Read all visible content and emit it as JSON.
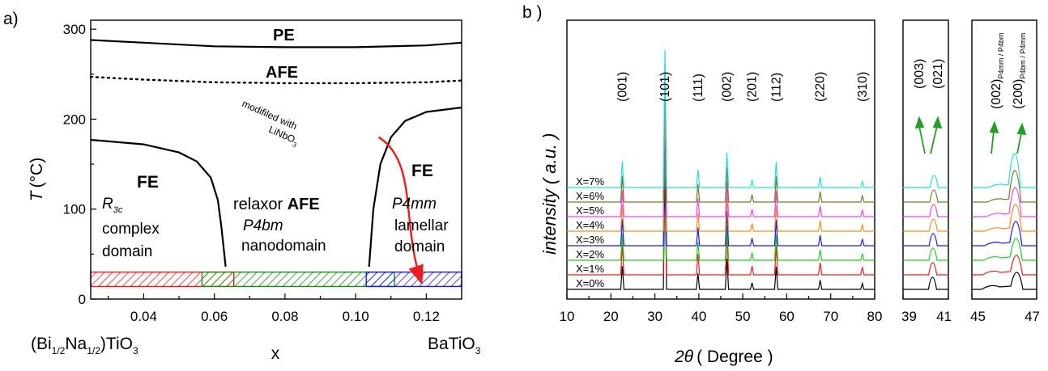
{
  "panel_a": {
    "panel_label": "a)",
    "y_axis_title_italic": "T",
    "y_axis_title_rest": "(°C)",
    "x_axis_title": "x",
    "left_compound": {
      "pre": "(Bi",
      "sub1": "1/2",
      "mid": "Na",
      "sub2": "1/2",
      "post": ")TiO",
      "sub3": "3"
    },
    "right_compound": {
      "pre": "BaTiO",
      "sub": "3"
    },
    "labels": {
      "pe": "PE",
      "afe": "AFE",
      "fe_left": "FE",
      "fe_right": "FE",
      "r3c_main": "R",
      "r3c_sub": "3c",
      "complex": "complex",
      "domain_left": "domain",
      "relaxor": "relaxor ",
      "relaxor_afe": "AFE",
      "p4bm": "P4bm",
      "nanodomain": "nanodomain",
      "p4mm": "P4mm",
      "lamellar": "lamellar",
      "domain_right": "domain",
      "arrow_line1": "modifiled with",
      "arrow_line2_main": "LiNbO",
      "arrow_line2_sub": "3"
    },
    "colors": {
      "rhombohedral": "#ee1c1c",
      "relaxor": "#1b8a1b",
      "tetragonal": "#1a1aee",
      "arrow": "#ee1c1c"
    }
  },
  "panel_b": {
    "panel_label": "b )",
    "y_axis_title": "intensity ( a.u. )",
    "x_axis_title_italic": "2θ",
    "x_axis_title_rest": "( Degree )",
    "peak_labels": [
      "(001)",
      "(101)",
      "(111)",
      "(002)",
      "(201)",
      "(112)",
      "(220)",
      "(310)"
    ],
    "peak_labels_zoom1": [
      "(003)",
      "(021)"
    ],
    "peak_labels_zoom2": [
      {
        "main": "(002)",
        "sub": "P4mm / P4bm"
      },
      {
        "main": "(200)",
        "sub": "P4bm / P4mm"
      }
    ]
  },
  "chart_data": [
    {
      "type": "line",
      "title": "",
      "xlabel": "x",
      "ylabel": "T (°C)",
      "xlim": [
        0.025,
        0.13
      ],
      "ylim": [
        0,
        310
      ],
      "x_ticks": [
        "0.04",
        "0.06",
        "0.08",
        "0.10",
        "0.12"
      ],
      "y_ticks": [
        "0",
        "100",
        "200",
        "300"
      ],
      "series": [
        {
          "name": "",
          "style": "solid",
          "x": [
            0.025,
            0.04,
            0.06,
            0.08,
            0.1,
            0.12,
            0.13
          ],
          "y": [
            288,
            285,
            281,
            280,
            280,
            282,
            285
          ]
        },
        {
          "name": "",
          "style": "dotted",
          "x": [
            0.025,
            0.04,
            0.06,
            0.08,
            0.1,
            0.12,
            0.13
          ],
          "y": [
            247,
            244,
            241,
            240,
            240,
            241,
            243
          ]
        },
        {
          "name": "",
          "style": "solid",
          "x": [
            0.025,
            0.04,
            0.05,
            0.055,
            0.059,
            0.061,
            0.062,
            0.0632
          ],
          "y": [
            177,
            172,
            163,
            153,
            135,
            110,
            80,
            36
          ]
        },
        {
          "name": "",
          "style": "solid",
          "x": [
            0.1038,
            0.105,
            0.107,
            0.11,
            0.114,
            0.12,
            0.13
          ],
          "y": [
            36,
            100,
            150,
            180,
            198,
            208,
            213
          ]
        }
      ],
      "hatched_bands": [
        {
          "name": "",
          "x": [
            0.025,
            0.0655
          ],
          "y": [
            14,
            30
          ],
          "color": "#ee1c1c"
        },
        {
          "name": "",
          "x": [
            0.0565,
            0.111
          ],
          "y": [
            14,
            30
          ],
          "color": "#1b8a1b"
        },
        {
          "name": "",
          "x": [
            0.103,
            0.13
          ],
          "y": [
            14,
            30
          ],
          "color": "#1a1aee"
        }
      ],
      "arrow": {
        "from": [
          0.1065,
          180
        ],
        "to": [
          0.1185,
          20
        ]
      }
    },
    {
      "type": "line",
      "title": "",
      "xlabel": "2θ ( Degree )",
      "ylabel": "intensity ( a.u. )",
      "x_ranges": [
        [
          10,
          80
        ],
        [
          39,
          41
        ],
        [
          45,
          47
        ]
      ],
      "x_ticks": [
        [
          "10",
          "20",
          "30",
          "40",
          "50",
          "60",
          "70",
          "80"
        ],
        [
          "39",
          "41"
        ],
        [
          "45",
          "47"
        ]
      ],
      "peaks_2theta": [
        22.6,
        32.3,
        39.8,
        46.4,
        52.1,
        57.6,
        67.6,
        77.2
      ],
      "series": [
        {
          "name": "X=0%",
          "color": "#000000"
        },
        {
          "name": "X=1%",
          "color": "#ee1c1c"
        },
        {
          "name": "X=2%",
          "color": "#22cc22"
        },
        {
          "name": "X=3%",
          "color": "#1a1aee"
        },
        {
          "name": "X=4%",
          "color": "#ff8c1a"
        },
        {
          "name": "X=5%",
          "color": "#ee44ee"
        },
        {
          "name": "X=6%",
          "color": "#7a7a22"
        },
        {
          "name": "X=7%",
          "color": "#22e0e0"
        }
      ]
    }
  ]
}
